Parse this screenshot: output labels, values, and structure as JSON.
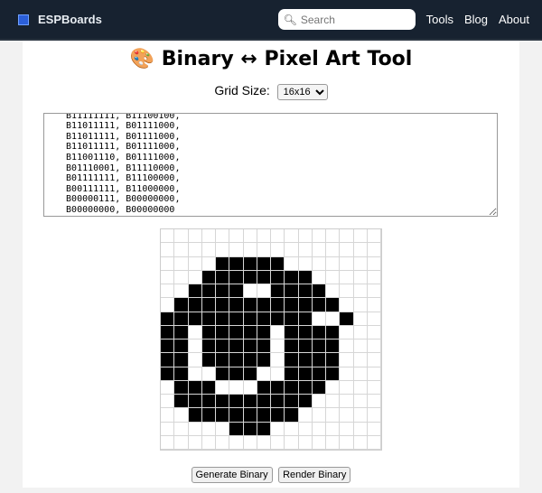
{
  "nav": {
    "brand": "ESPBoards",
    "search_placeholder": "Search",
    "links": [
      "Tools",
      "Blog",
      "About"
    ]
  },
  "title": "🎨 Binary ↔ Pixel Art Tool",
  "grid_size": {
    "label": "Grid Size:",
    "selected": "16x16"
  },
  "rows": [
    "B00000000, B00000000,",
    "B00000000, B00000000,",
    "B00001111, B10000000,",
    "B00011111, B11100000,",
    "B00111100, B11110000,",
    "B01111111, B11111000,",
    "B11111111, B11100100,",
    "B11011111, B01111000,",
    "B11011111, B01111000,",
    "B11011111, B01111000,",
    "B11001110, B01111000,",
    "B01110001, B11110000,",
    "B01111111, B11100000,",
    "B00111111, B11000000,",
    "B00000111, B00000000,",
    "B00000000, B00000000"
  ],
  "buttons": {
    "generate": "Generate Binary",
    "render": "Render Binary"
  }
}
